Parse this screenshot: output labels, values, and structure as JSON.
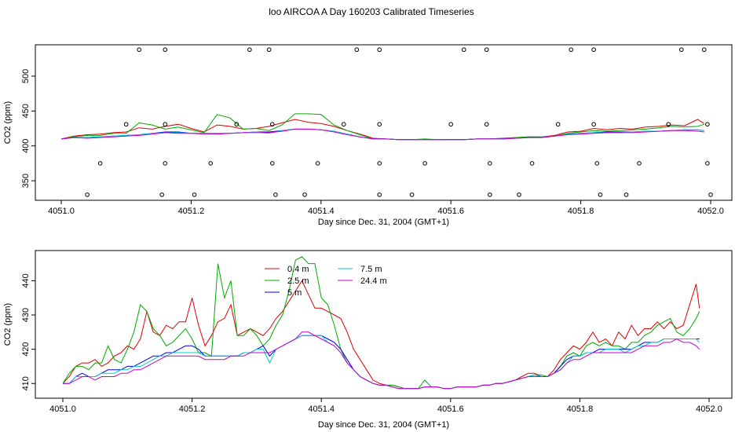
{
  "title": "loo AIRCOA A  Day 160203  Calibrated Timeseries",
  "legend_labels": [
    "0.4 m",
    "2.5 m",
    "5 m",
    "7.5 m",
    "24.4 m"
  ],
  "chart_data": [
    {
      "type": "line",
      "xlabel": "Day since Dec. 31, 2004 (GMT+1)",
      "ylabel": "CO2 (ppm)",
      "xlim": [
        4051.0,
        4052.0
      ],
      "ylim": [
        322,
        545
      ],
      "xticks": [
        "4051.0",
        "4051.2",
        "4051.4",
        "4051.6",
        "4051.8",
        "4052.0"
      ],
      "yticks": [
        "350",
        "400",
        "450",
        "500"
      ],
      "grid": false,
      "x": [
        4051.0,
        4051.02,
        4051.04,
        4051.06,
        4051.08,
        4051.1,
        4051.12,
        4051.14,
        4051.16,
        4051.18,
        4051.2,
        4051.22,
        4051.24,
        4051.26,
        4051.28,
        4051.3,
        4051.32,
        4051.34,
        4051.36,
        4051.38,
        4051.4,
        4051.42,
        4051.44,
        4051.46,
        4051.48,
        4051.5,
        4051.52,
        4051.54,
        4051.56,
        4051.58,
        4051.6,
        4051.62,
        4051.64,
        4051.66,
        4051.68,
        4051.7,
        4051.72,
        4051.74,
        4051.76,
        4051.78,
        4051.8,
        4051.82,
        4051.84,
        4051.86,
        4051.88,
        4051.9,
        4051.92,
        4051.94,
        4051.96,
        4051.98,
        4051.99
      ],
      "series": [
        {
          "name": "0.4 m",
          "color": "#dd0000",
          "values": [
            410,
            414,
            416,
            417,
            419,
            420,
            426,
            424,
            428,
            431,
            425,
            420,
            430,
            428,
            424,
            425,
            428,
            433,
            438,
            434,
            432,
            428,
            422,
            417,
            411,
            410,
            409,
            409,
            409,
            409,
            409,
            409,
            410,
            410,
            411,
            412,
            413,
            413,
            415,
            420,
            421,
            425,
            423,
            425,
            424,
            427,
            428,
            430,
            429,
            438,
            432
          ]
        },
        {
          "name": "2.5 m",
          "color": "#00aa00",
          "values": [
            410,
            413,
            415,
            415,
            418,
            418,
            433,
            430,
            424,
            427,
            423,
            419,
            445,
            440,
            424,
            425,
            422,
            430,
            446,
            446,
            445,
            430,
            422,
            416,
            410,
            410,
            409,
            409,
            410,
            409,
            409,
            409,
            410,
            410,
            411,
            412,
            413,
            413,
            414,
            418,
            420,
            422,
            421,
            422,
            423,
            424,
            426,
            428,
            427,
            428,
            431
          ]
        },
        {
          "name": "5 m",
          "color": "#0000ee",
          "values": [
            410,
            412,
            412,
            413,
            414,
            415,
            416,
            418,
            420,
            420,
            418,
            418,
            418,
            418,
            419,
            420,
            420,
            422,
            424,
            424,
            423,
            421,
            417,
            413,
            410,
            410,
            409,
            409,
            409,
            409,
            409,
            409,
            410,
            410,
            410,
            411,
            412,
            412,
            414,
            417,
            418,
            419,
            420,
            420,
            420,
            421,
            421,
            422,
            423,
            423,
            422
          ]
        },
        {
          "name": "7.5 m",
          "color": "#00cccc",
          "values": [
            410,
            412,
            412,
            413,
            414,
            415,
            416,
            418,
            419,
            419,
            418,
            418,
            418,
            418,
            419,
            420,
            418,
            422,
            424,
            424,
            423,
            421,
            417,
            413,
            410,
            410,
            409,
            409,
            409,
            409,
            409,
            409,
            410,
            410,
            410,
            411,
            412,
            412,
            414,
            417,
            418,
            419,
            419,
            419,
            420,
            421,
            421,
            422,
            423,
            423,
            422
          ]
        },
        {
          "name": "24.4 m",
          "color": "#cc00cc",
          "values": [
            410,
            412,
            411,
            412,
            413,
            414,
            415,
            417,
            419,
            418,
            418,
            417,
            417,
            418,
            419,
            419,
            419,
            421,
            424,
            424,
            423,
            420,
            416,
            413,
            410,
            410,
            409,
            409,
            409,
            409,
            409,
            409,
            410,
            410,
            410,
            411,
            412,
            412,
            414,
            416,
            417,
            418,
            419,
            419,
            419,
            420,
            421,
            422,
            422,
            421,
            420
          ]
        }
      ],
      "flag_markers": {
        "symbol": "open-circle",
        "rows": [
          {
            "y": 538,
            "x": [
              4051.12,
              4051.16,
              4051.29,
              4051.32,
              4051.455,
              4051.49,
              4051.62,
              4051.655,
              4051.785,
              4051.82,
              4051.955,
              4051.99
            ]
          },
          {
            "y": 431,
            "x": [
              4051.1,
              4051.16,
              4051.27,
              4051.325,
              4051.435,
              4051.49,
              4051.6,
              4051.655,
              4051.765,
              4051.82,
              4051.935,
              4051.995
            ]
          },
          {
            "y": 375,
            "x": [
              4051.06,
              4051.16,
              4051.23,
              4051.325,
              4051.395,
              4051.49,
              4051.56,
              4051.66,
              4051.725,
              4051.825,
              4051.89,
              4051.995
            ]
          },
          {
            "y": 330,
            "x": [
              4051.04,
              4051.155,
              4051.205,
              4051.33,
              4051.375,
              4051.49,
              4051.54,
              4051.66,
              4051.705,
              4051.83,
              4051.87,
              4052.0
            ]
          }
        ]
      }
    },
    {
      "type": "line",
      "xlabel": "Day since Dec. 31, 2004 (GMT+1)",
      "ylabel": "CO2 (ppm)",
      "xlim": [
        4051.0,
        4052.0
      ],
      "ylim": [
        405.7,
        448.8
      ],
      "xticks": [
        "4051.0",
        "4051.2",
        "4051.4",
        "4051.6",
        "4051.8",
        "4052.0"
      ],
      "yticks": [
        "410",
        "420",
        "430",
        "440"
      ],
      "grid": false,
      "legend": "top-center",
      "x": [
        4051.0,
        4051.01,
        4051.02,
        4051.03,
        4051.04,
        4051.05,
        4051.06,
        4051.07,
        4051.08,
        4051.09,
        4051.1,
        4051.11,
        4051.12,
        4051.13,
        4051.14,
        4051.15,
        4051.16,
        4051.17,
        4051.18,
        4051.19,
        4051.2,
        4051.21,
        4051.22,
        4051.23,
        4051.24,
        4051.25,
        4051.26,
        4051.27,
        4051.28,
        4051.29,
        4051.3,
        4051.31,
        4051.32,
        4051.33,
        4051.34,
        4051.35,
        4051.36,
        4051.37,
        4051.38,
        4051.39,
        4051.4,
        4051.41,
        4051.42,
        4051.43,
        4051.44,
        4051.45,
        4051.46,
        4051.47,
        4051.48,
        4051.49,
        4051.5,
        4051.51,
        4051.52,
        4051.53,
        4051.54,
        4051.55,
        4051.56,
        4051.57,
        4051.58,
        4051.59,
        4051.6,
        4051.61,
        4051.62,
        4051.63,
        4051.64,
        4051.65,
        4051.66,
        4051.67,
        4051.68,
        4051.69,
        4051.7,
        4051.71,
        4051.72,
        4051.73,
        4051.74,
        4051.75,
        4051.76,
        4051.77,
        4051.78,
        4051.79,
        4051.8,
        4051.81,
        4051.82,
        4051.83,
        4051.84,
        4051.85,
        4051.86,
        4051.87,
        4051.88,
        4051.89,
        4051.9,
        4051.91,
        4051.92,
        4051.93,
        4051.94,
        4051.95,
        4051.96,
        4051.97,
        4051.98,
        4051.985
      ],
      "series": [
        {
          "name": "0.4 m",
          "color": "#dd0000",
          "values": [
            410,
            412,
            415,
            416,
            416,
            417,
            415,
            416,
            418,
            419,
            421,
            420,
            423,
            431,
            425,
            424,
            427,
            426,
            428,
            428,
            435,
            427,
            421,
            424,
            428,
            429,
            433,
            424,
            425,
            426,
            425,
            424,
            426,
            429,
            431,
            434,
            437,
            440,
            436,
            432,
            432,
            431,
            430,
            429,
            425,
            420,
            417,
            414,
            411,
            410,
            409.5,
            409.5,
            409,
            408.5,
            408.5,
            408.5,
            409,
            409,
            409,
            408.5,
            408.5,
            409,
            409,
            409,
            409,
            409.5,
            409.5,
            410,
            410,
            410.5,
            411,
            412,
            413,
            413,
            412,
            412,
            414,
            417,
            419,
            421,
            420,
            422,
            425,
            422,
            423,
            421,
            425,
            423,
            427,
            424,
            426,
            426,
            428,
            426,
            428,
            426,
            427,
            433,
            439,
            432
          ]
        },
        {
          "name": "2.5 m",
          "color": "#00aa00",
          "values": [
            410,
            413,
            415,
            415,
            414,
            416,
            416,
            421,
            417,
            416,
            420,
            425,
            433,
            431,
            426,
            424,
            421,
            422,
            424,
            426,
            423,
            419,
            419,
            418,
            445,
            435,
            440,
            424,
            424,
            426,
            424,
            421,
            423,
            427,
            430,
            437,
            446,
            447,
            445,
            445,
            435,
            433,
            427,
            420,
            416,
            414,
            412,
            411,
            410,
            409.5,
            409.5,
            409.5,
            409,
            408.5,
            408.5,
            408.5,
            411,
            409,
            409,
            408.5,
            408.5,
            409,
            409,
            409,
            409,
            409.5,
            409.5,
            410,
            410,
            410.5,
            411,
            411.5,
            412,
            412.5,
            412.5,
            412,
            413,
            415,
            418,
            419,
            418,
            421,
            422,
            421,
            422,
            421,
            421,
            420,
            422,
            422,
            424,
            425,
            427,
            428,
            429,
            425,
            424,
            426,
            429,
            431
          ]
        },
        {
          "name": "5 m",
          "color": "#0000ee",
          "values": [
            410,
            410,
            412,
            413,
            412,
            412,
            413,
            414,
            414,
            414,
            415,
            415,
            416,
            417,
            418,
            418,
            419,
            419,
            420,
            421,
            421,
            420,
            418,
            418,
            418,
            418,
            418,
            418,
            419,
            419,
            420,
            421,
            418,
            420,
            421,
            422,
            423,
            424,
            424,
            424,
            424,
            423,
            422,
            420,
            417,
            414,
            412,
            411,
            410,
            409.5,
            409.5,
            409,
            408.5,
            408.5,
            408.5,
            408.5,
            409,
            409,
            409,
            408.5,
            408.5,
            409,
            409,
            409,
            409,
            409.5,
            409.5,
            410,
            410,
            410.5,
            411,
            411.5,
            412,
            412.5,
            412,
            412,
            413,
            415,
            417,
            418,
            418,
            419,
            419,
            420,
            420,
            420,
            420,
            420,
            420,
            421,
            422,
            422,
            422,
            423,
            423,
            423,
            423,
            423,
            423,
            423
          ]
        },
        {
          "name": "7.5 m",
          "color": "#00cccc",
          "values": [
            410,
            410,
            412,
            412,
            412,
            412,
            413,
            413,
            413,
            414,
            414,
            415,
            415,
            416,
            417,
            418,
            418,
            419,
            419,
            419,
            419,
            419,
            418,
            418,
            418,
            418,
            418,
            418,
            419,
            419,
            420,
            420,
            416,
            420,
            421,
            422,
            423,
            424,
            424,
            424,
            424,
            422,
            421,
            419,
            416,
            414,
            412,
            411,
            410,
            409.5,
            409.5,
            409,
            408.5,
            408.5,
            408.5,
            408.5,
            409,
            409,
            409,
            408.5,
            408.5,
            409,
            409,
            409,
            409,
            409.5,
            409.5,
            410,
            410,
            410.5,
            411,
            411.5,
            412,
            412.5,
            412,
            412,
            413,
            414,
            416,
            418,
            418,
            419,
            419,
            419,
            420,
            420,
            420,
            419,
            420,
            421,
            421,
            422,
            422,
            423,
            423,
            423,
            423,
            423,
            423,
            422
          ]
        },
        {
          "name": "24.4 m",
          "color": "#cc00cc",
          "values": [
            410,
            410,
            411,
            412,
            412,
            411,
            412,
            412,
            412,
            413,
            413,
            414,
            414,
            415,
            416,
            417,
            418,
            418,
            418,
            418,
            418,
            418,
            417,
            417,
            417,
            417,
            418,
            418,
            418,
            419,
            419,
            419,
            419,
            420,
            421,
            422,
            423,
            425,
            425,
            424,
            423,
            422,
            421,
            419,
            416,
            414,
            412,
            411,
            410,
            409.5,
            409.5,
            409,
            408.5,
            408.5,
            408.5,
            408.5,
            409,
            409,
            409,
            408.5,
            408.5,
            409,
            409,
            409,
            409,
            409.5,
            409.5,
            410,
            410,
            410.5,
            411,
            411.5,
            412,
            412,
            412,
            412,
            413,
            414,
            416,
            417,
            417,
            418,
            419,
            419,
            419,
            419,
            419,
            419,
            419,
            420,
            421,
            421,
            421,
            422,
            422,
            423,
            422,
            422,
            421,
            420
          ]
        }
      ]
    }
  ]
}
